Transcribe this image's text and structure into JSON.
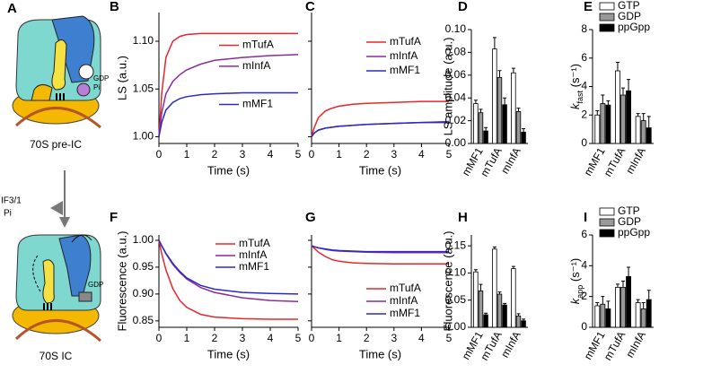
{
  "diagram": {
    "label": "A",
    "pre": {
      "gdp": "GDP",
      "pi": "Pi",
      "caption": "70S pre-IC"
    },
    "step": {
      "factor": "IF3/1",
      "product": "Pi"
    },
    "post": {
      "gdp": "GDP",
      "caption": "70S IC"
    }
  },
  "chart_data": [
    {
      "panel": "B",
      "type": "line",
      "ylabel": "LS (a.u.)",
      "xlabel": "Time (s)",
      "x": [
        0,
        0.1,
        0.25,
        0.5,
        0.75,
        1,
        1.5,
        2,
        3,
        4,
        5
      ],
      "xlim": [
        0,
        5
      ],
      "xticks": [
        0,
        1,
        2,
        3,
        4,
        5
      ],
      "ylim": [
        0.993,
        1.13
      ],
      "yticks": [
        {
          "value": 1,
          "label": "1.00"
        },
        1.05,
        {
          "value": 1.1,
          "label": "1.10"
        }
      ],
      "legend": "inline",
      "series": [
        {
          "name": "mTufA",
          "color": "#e8262b",
          "values": [
            1.0,
            1.045,
            1.083,
            1.1,
            1.105,
            1.107,
            1.108,
            1.108,
            1.108,
            1.108,
            1.108
          ]
        },
        {
          "name": "mInfA",
          "color": "#8b2c9a",
          "values": [
            1.0,
            1.025,
            1.045,
            1.058,
            1.065,
            1.07,
            1.076,
            1.08,
            1.083,
            1.085,
            1.086
          ]
        },
        {
          "name": "mMF1",
          "color": "#2a2ac8",
          "values": [
            1.0,
            1.015,
            1.028,
            1.036,
            1.04,
            1.042,
            1.044,
            1.045,
            1.046,
            1.046,
            1.046
          ]
        }
      ]
    },
    {
      "panel": "C",
      "type": "line",
      "xlabel": "Time (s)",
      "x": [
        0,
        0.1,
        0.25,
        0.5,
        0.75,
        1,
        1.5,
        2,
        3,
        4,
        5
      ],
      "xlim": [
        0,
        5
      ],
      "xticks": [
        0,
        1,
        2,
        3,
        4,
        5
      ],
      "ylim": [
        0.993,
        1.13
      ],
      "yticks": [
        1,
        1.05,
        1.1
      ],
      "legend": "upper right",
      "series": [
        {
          "name": "mTufA",
          "color": "#e8262b",
          "values": [
            1.0,
            1.01,
            1.02,
            1.027,
            1.03,
            1.032,
            1.034,
            1.035,
            1.036,
            1.037,
            1.037
          ]
        },
        {
          "name": "mInfA",
          "color": "#8b2c9a",
          "values": [
            1.0,
            1.004,
            1.007,
            1.009,
            1.01,
            1.011,
            1.012,
            1.013,
            1.014,
            1.015,
            1.016
          ]
        },
        {
          "name": "mMF1",
          "color": "#2a2ac8",
          "values": [
            1.0,
            1.004,
            1.007,
            1.009,
            1.01,
            1.011,
            1.012,
            1.013,
            1.014,
            1.015,
            1.015
          ]
        }
      ]
    },
    {
      "panel": "D",
      "type": "bar",
      "ylabel": "LS amplitude (a.u.)",
      "categories": [
        "mMF1",
        "mTufA",
        "mInfA"
      ],
      "ylim": [
        0,
        0.1
      ],
      "yticks": [
        {
          "value": 0,
          "label": "0.00"
        },
        0.02,
        0.04,
        0.06,
        0.08,
        {
          "value": 0.1,
          "label": "0.10"
        }
      ],
      "series": [
        {
          "color": "#ffffff",
          "values": [
            0.035,
            0.083,
            0.062
          ],
          "errors": [
            0.003,
            0.01,
            0.004
          ]
        },
        {
          "color": "#999999",
          "values": [
            0.027,
            0.058,
            0.028
          ],
          "errors": [
            0.003,
            0.006,
            0.003
          ]
        },
        {
          "color": "#000000",
          "values": [
            0.011,
            0.034,
            0.01
          ],
          "errors": [
            0.003,
            0.006,
            0.003
          ]
        }
      ]
    },
    {
      "panel": "E",
      "type": "bar",
      "ylabel": {
        "main": "k",
        "sub": "fast",
        "unit": " (s⁻¹)"
      },
      "categories": [
        "mMF1",
        "mTufA",
        "mInfA"
      ],
      "ylim": [
        0,
        8
      ],
      "yticks": [
        0,
        2,
        4,
        6,
        8
      ],
      "legend": "upper right",
      "series": [
        {
          "name": "GTP",
          "color": "#ffffff",
          "values": [
            2.0,
            5.1,
            1.9
          ],
          "errors": [
            0.3,
            0.6,
            0.2
          ]
        },
        {
          "name": "GDP",
          "color": "#999999",
          "values": [
            2.8,
            3.4,
            1.6
          ],
          "errors": [
            0.6,
            0.5,
            0.5
          ]
        },
        {
          "name": "ppGpp",
          "color": "#000000",
          "values": [
            2.7,
            3.7,
            1.1
          ],
          "errors": [
            0.3,
            0.8,
            0.8
          ]
        }
      ]
    },
    {
      "panel": "F",
      "type": "line",
      "ylabel": "Fluorescence (a.u.)",
      "xlabel": "Time (s)",
      "x": [
        0,
        0.1,
        0.25,
        0.5,
        0.75,
        1,
        1.5,
        2,
        3,
        4,
        5
      ],
      "xlim": [
        0,
        5
      ],
      "xticks": [
        0,
        1,
        2,
        3,
        4,
        5
      ],
      "ylim": [
        0.838,
        1.01
      ],
      "yticks": [
        0.85,
        {
          "value": 0.9,
          "label": "0.90"
        },
        0.95,
        {
          "value": 1,
          "label": "1.00"
        }
      ],
      "legend": "upper right",
      "series": [
        {
          "name": "mTufA",
          "color": "#e8262b",
          "values": [
            1.0,
            0.975,
            0.945,
            0.91,
            0.888,
            0.875,
            0.862,
            0.857,
            0.854,
            0.853,
            0.853
          ]
        },
        {
          "name": "mInfA",
          "color": "#8b2c9a",
          "values": [
            1.0,
            0.99,
            0.975,
            0.955,
            0.94,
            0.928,
            0.912,
            0.903,
            0.893,
            0.888,
            0.886
          ]
        },
        {
          "name": "mMF1",
          "color": "#2a2ac8",
          "values": [
            1.0,
            0.99,
            0.976,
            0.957,
            0.942,
            0.93,
            0.916,
            0.909,
            0.903,
            0.901,
            0.9
          ]
        }
      ]
    },
    {
      "panel": "G",
      "type": "line",
      "xlabel": "Time (s)",
      "x": [
        0,
        0.1,
        0.25,
        0.5,
        0.75,
        1,
        1.5,
        2,
        3,
        4,
        5
      ],
      "xlim": [
        0,
        5
      ],
      "xticks": [
        0,
        1,
        2,
        3,
        4,
        5
      ],
      "ylim": [
        0.838,
        1.01
      ],
      "yticks": [
        0.85,
        0.9,
        0.95,
        1
      ],
      "legend": "lower right",
      "series": [
        {
          "name": "mTufA",
          "color": "#e8262b",
          "values": [
            0.99,
            0.985,
            0.978,
            0.97,
            0.964,
            0.961,
            0.958,
            0.957,
            0.956,
            0.956,
            0.956
          ]
        },
        {
          "name": "mInfA",
          "color": "#8b2c9a",
          "values": [
            0.99,
            0.988,
            0.986,
            0.983,
            0.981,
            0.98,
            0.979,
            0.978,
            0.977,
            0.977,
            0.977
          ]
        },
        {
          "name": "mMF1",
          "color": "#2a2ac8",
          "values": [
            0.99,
            0.988,
            0.986,
            0.984,
            0.982,
            0.981,
            0.98,
            0.979,
            0.979,
            0.979,
            0.979
          ]
        }
      ]
    },
    {
      "panel": "H",
      "type": "bar",
      "ylabel": "Fluorescence (a.u.)",
      "categories": [
        "mMF1",
        "mTufA",
        "mInfA"
      ],
      "ylim": [
        0,
        0.17
      ],
      "yticks": [
        {
          "value": 0,
          "label": "0.00"
        },
        0.05,
        {
          "value": 0.1,
          "label": "0.10"
        },
        0.15
      ],
      "series": [
        {
          "color": "#ffffff",
          "values": [
            0.102,
            0.144,
            0.108
          ],
          "errors": [
            0.004,
            0.004,
            0.004
          ]
        },
        {
          "color": "#999999",
          "values": [
            0.067,
            0.061,
            0.021
          ],
          "errors": [
            0.012,
            0.004,
            0.004
          ]
        },
        {
          "color": "#000000",
          "values": [
            0.023,
            0.041,
            0.012
          ],
          "errors": [
            0.003,
            0.003,
            0.003
          ]
        }
      ]
    },
    {
      "panel": "I",
      "type": "bar",
      "ylabel": {
        "main": "k",
        "sub": "app",
        "unit": " (s⁻¹)"
      },
      "categories": [
        "mMF1",
        "mTufA",
        "mInfA"
      ],
      "ylim": [
        0,
        6
      ],
      "yticks": [
        0,
        2,
        4,
        6
      ],
      "legend": "upper right",
      "series": [
        {
          "name": "GTP",
          "color": "#ffffff",
          "values": [
            1.4,
            2.6,
            1.6
          ],
          "errors": [
            0.2,
            0.2,
            0.2
          ]
        },
        {
          "name": "GDP",
          "color": "#999999",
          "values": [
            1.5,
            2.6,
            1.2
          ],
          "errors": [
            0.5,
            0.4,
            0.4
          ]
        },
        {
          "name": "ppGpp",
          "color": "#000000",
          "values": [
            1.2,
            3.3,
            1.8
          ],
          "errors": [
            0.5,
            0.6,
            0.6
          ]
        }
      ]
    }
  ]
}
